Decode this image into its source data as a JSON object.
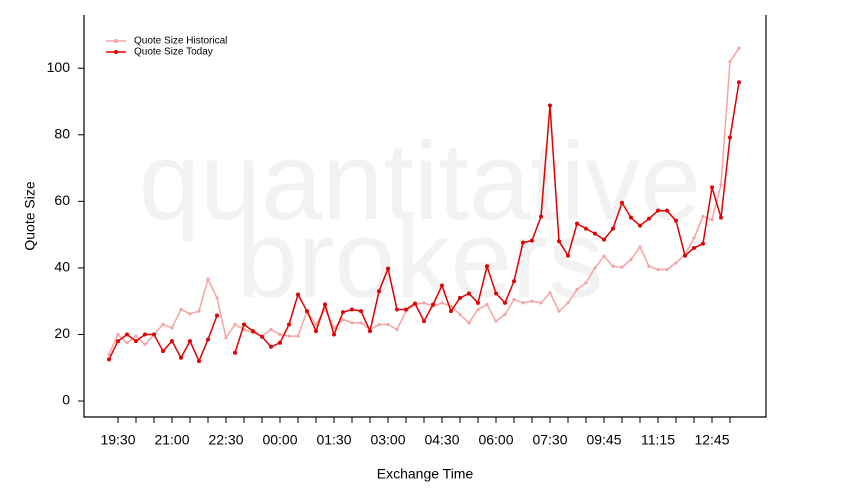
{
  "chart_data": {
    "type": "line",
    "xlabel": "Exchange Time",
    "ylabel": "Quote Size",
    "watermark": [
      "quantitative",
      "brokers"
    ],
    "categories": [
      null,
      "19:30",
      null,
      null,
      null,
      null,
      null,
      "21:00",
      null,
      null,
      null,
      null,
      null,
      "22:30",
      null,
      null,
      null,
      null,
      null,
      "00:00",
      null,
      null,
      null,
      null,
      null,
      "01:30",
      null,
      null,
      null,
      null,
      null,
      "03:00",
      null,
      null,
      null,
      null,
      null,
      "04:30",
      null,
      null,
      null,
      null,
      null,
      "06:00",
      null,
      null,
      null,
      null,
      null,
      "07:30",
      null,
      null,
      null,
      null,
      null,
      "09:45",
      null,
      null,
      null,
      null,
      null,
      "11:15",
      null,
      null,
      null,
      null,
      null,
      "12:45",
      null,
      null,
      null
    ],
    "series": [
      {
        "name": "Quote Size Historical",
        "color": "#f7a3a3",
        "values": [
          14,
          20,
          17.5,
          19.5,
          17,
          20,
          23,
          22,
          27.5,
          26.2,
          27,
          36.6,
          31,
          19,
          23,
          21.5,
          20.5,
          19.5,
          21.5,
          20,
          19.5,
          19.5,
          27,
          23,
          27.5,
          22,
          24.5,
          23.5,
          23.5,
          21.5,
          23,
          23,
          21.5,
          27,
          29,
          29.5,
          28.5,
          29.5,
          28.5,
          26,
          23.5,
          27.5,
          29,
          24,
          26,
          30.5,
          29.5,
          30,
          29.5,
          32.5,
          27,
          29.5,
          33.5,
          35.5,
          40,
          43.5,
          40.5,
          40.2,
          42.5,
          46.3,
          40.5,
          39.5,
          39.5,
          41.5,
          44,
          49,
          55.5,
          54.5,
          65,
          102,
          106
        ]
      },
      {
        "name": "Quote Size Today",
        "color": "#e00000",
        "values": [
          12.5,
          18,
          20,
          18,
          20,
          20,
          15,
          18,
          13,
          18,
          12,
          18.5,
          25.7,
          null,
          14.5,
          23,
          21,
          19.3,
          16.3,
          17.5,
          23,
          32,
          27,
          21,
          29,
          20,
          26.7,
          27.5,
          27,
          21,
          33,
          39.8,
          27.5,
          27.5,
          29.3,
          24,
          29,
          34.7,
          27,
          31,
          32.3,
          29.5,
          40.5,
          32.3,
          29.5,
          36,
          47.6,
          48.2,
          55.4,
          88.8,
          48,
          43.7,
          53.3,
          51.8,
          50.3,
          48.5,
          51.8,
          59.6,
          55.1,
          52.7,
          54.8,
          57.2,
          57.2,
          54.2,
          43.7,
          46,
          47.3,
          64.2,
          55.1,
          79.2,
          95.8
        ]
      }
    ],
    "ylim": [
      -4.8,
      116
    ],
    "yticks": [
      0,
      20,
      40,
      60,
      80,
      100
    ],
    "legend": "topleft"
  }
}
